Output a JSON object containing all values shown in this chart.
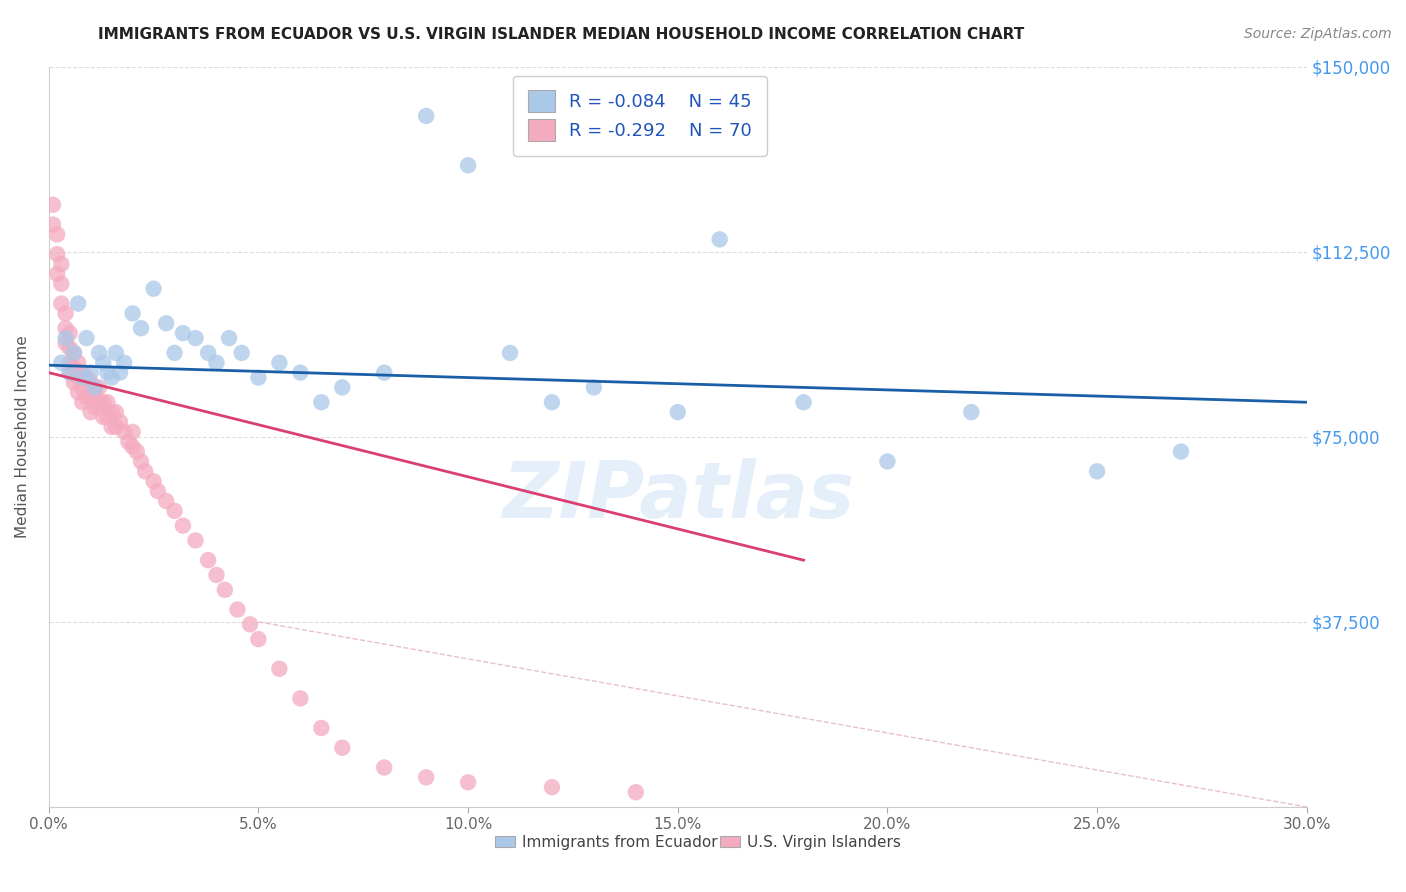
{
  "title": "IMMIGRANTS FROM ECUADOR VS U.S. VIRGIN ISLANDER MEDIAN HOUSEHOLD INCOME CORRELATION CHART",
  "source": "Source: ZipAtlas.com",
  "ylabel": "Median Household Income",
  "yticks": [
    0,
    37500,
    75000,
    112500,
    150000
  ],
  "ytick_labels": [
    "",
    "$37,500",
    "$75,000",
    "$112,500",
    "$150,000"
  ],
  "xmin": 0.0,
  "xmax": 0.3,
  "ymin": 0,
  "ymax": 150000,
  "blue_R": -0.084,
  "blue_N": 45,
  "pink_R": -0.292,
  "pink_N": 70,
  "blue_color": "#aac8e8",
  "pink_color": "#f4aabf",
  "blue_line_color": "#1a5fa8",
  "pink_line_color": "#d94070",
  "legend_label_blue": "Immigrants from Ecuador",
  "legend_label_pink": "U.S. Virgin Islanders",
  "blue_scatter_x": [
    0.003,
    0.004,
    0.005,
    0.006,
    0.007,
    0.008,
    0.009,
    0.01,
    0.011,
    0.012,
    0.013,
    0.014,
    0.015,
    0.016,
    0.017,
    0.018,
    0.02,
    0.022,
    0.025,
    0.028,
    0.03,
    0.032,
    0.035,
    0.038,
    0.04,
    0.043,
    0.046,
    0.05,
    0.055,
    0.06,
    0.065,
    0.07,
    0.08,
    0.09,
    0.1,
    0.11,
    0.12,
    0.13,
    0.15,
    0.16,
    0.18,
    0.2,
    0.22,
    0.25,
    0.27
  ],
  "blue_scatter_y": [
    90000,
    95000,
    88000,
    92000,
    102000,
    87000,
    95000,
    88000,
    85000,
    92000,
    90000,
    88000,
    87000,
    92000,
    88000,
    90000,
    100000,
    97000,
    105000,
    98000,
    92000,
    96000,
    95000,
    92000,
    90000,
    95000,
    92000,
    87000,
    90000,
    88000,
    82000,
    85000,
    88000,
    140000,
    130000,
    92000,
    82000,
    85000,
    80000,
    115000,
    82000,
    70000,
    80000,
    68000,
    72000
  ],
  "pink_scatter_x": [
    0.001,
    0.001,
    0.002,
    0.002,
    0.002,
    0.003,
    0.003,
    0.003,
    0.004,
    0.004,
    0.004,
    0.005,
    0.005,
    0.005,
    0.005,
    0.006,
    0.006,
    0.006,
    0.007,
    0.007,
    0.007,
    0.008,
    0.008,
    0.008,
    0.009,
    0.009,
    0.01,
    0.01,
    0.01,
    0.011,
    0.011,
    0.012,
    0.012,
    0.013,
    0.013,
    0.014,
    0.014,
    0.015,
    0.015,
    0.016,
    0.016,
    0.017,
    0.018,
    0.019,
    0.02,
    0.02,
    0.021,
    0.022,
    0.023,
    0.025,
    0.026,
    0.028,
    0.03,
    0.032,
    0.035,
    0.038,
    0.04,
    0.042,
    0.045,
    0.048,
    0.05,
    0.055,
    0.06,
    0.065,
    0.07,
    0.08,
    0.09,
    0.1,
    0.12,
    0.14
  ],
  "pink_scatter_y": [
    122000,
    118000,
    116000,
    112000,
    108000,
    110000,
    106000,
    102000,
    100000,
    97000,
    94000,
    96000,
    93000,
    90000,
    88000,
    92000,
    89000,
    86000,
    90000,
    87000,
    84000,
    88000,
    85000,
    82000,
    87000,
    83000,
    86000,
    83000,
    80000,
    84000,
    81000,
    85000,
    82000,
    82000,
    79000,
    82000,
    79000,
    80000,
    77000,
    80000,
    77000,
    78000,
    76000,
    74000,
    76000,
    73000,
    72000,
    70000,
    68000,
    66000,
    64000,
    62000,
    60000,
    57000,
    54000,
    50000,
    47000,
    44000,
    40000,
    37000,
    34000,
    28000,
    22000,
    16000,
    12000,
    8000,
    6000,
    5000,
    4000,
    3000
  ],
  "blue_trend_x0": 0.0,
  "blue_trend_y0": 89500,
  "blue_trend_x1": 0.3,
  "blue_trend_y1": 82000,
  "pink_trend_x0": 0.0,
  "pink_trend_y0": 88000,
  "pink_trend_x1": 0.18,
  "pink_trend_y1": 50000,
  "ref_line_x0": 0.05,
  "ref_line_y0": 37500,
  "ref_line_x1": 0.3,
  "ref_line_y1": 0
}
